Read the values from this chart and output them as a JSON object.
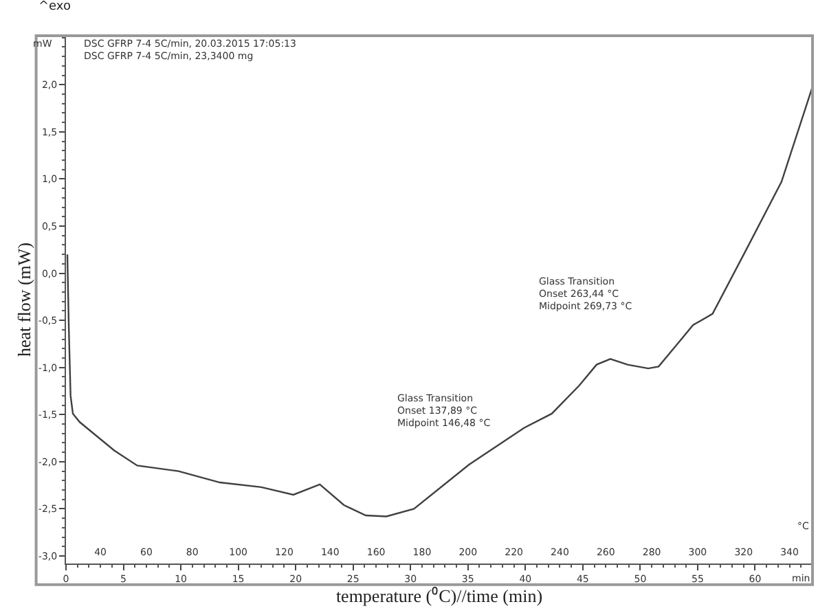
{
  "chart_data": {
    "type": "line",
    "xlabel": "temperature (⁰C)//time (min)",
    "ylabel": "heat flow (mW)",
    "annotations": [
      "^exo",
      "mW",
      "°C",
      "min",
      "DSC GFRP 7-4 5C/min, 20.03.2015 17:05:13",
      "DSC GFRP 7-4 5C/min, 23,3400 mg",
      "Glass Transition\nOnset 137,89 °C\nMidpoint 146,48 °C",
      "Glass Transition\nOnset 263,44 °C\nMidpoint 269,73 °C"
    ],
    "x": [
      0.12,
      0.25,
      0.4,
      0.6,
      1.2,
      4.2,
      6.2,
      9.8,
      13.4,
      17.0,
      19.8,
      22.1,
      24.2,
      26.1,
      27.9,
      30.3,
      35.1,
      39.9,
      42.3,
      44.7,
      46.2,
      47.4,
      48.9,
      50.7,
      51.6,
      53.1,
      54.6,
      56.3,
      59.4,
      62.3,
      65.0
    ],
    "series": [
      {
        "color": "#404040",
        "values": [
          0.2,
          -0.6,
          -1.3,
          -1.49,
          -1.58,
          -1.88,
          -2.04,
          -2.1,
          -2.22,
          -2.27,
          -2.35,
          -2.24,
          -2.46,
          -2.57,
          -2.58,
          -2.5,
          -2.03,
          -1.64,
          -1.49,
          -1.19,
          -0.97,
          -0.91,
          -0.97,
          -1.01,
          -0.99,
          -0.77,
          -0.55,
          -0.43,
          0.29,
          0.97,
          1.98
        ]
      }
    ],
    "xlim": [
      0,
      65
    ],
    "xticks": [
      0,
      5,
      10,
      15,
      20,
      25,
      30,
      35,
      40,
      45,
      50,
      55,
      60
    ],
    "x2lim": [
      25,
      350
    ],
    "x2ticks": [
      40,
      60,
      80,
      100,
      120,
      140,
      160,
      180,
      200,
      220,
      240,
      260,
      280,
      300,
      320,
      340
    ],
    "ylim": [
      -3.08,
      2.52
    ],
    "yticks": [
      {
        "value": -3.0,
        "label": "-3,0"
      },
      {
        "value": -2.5,
        "label": "-2,5"
      },
      {
        "value": -2.0,
        "label": "-2,0"
      },
      {
        "value": -1.5,
        "label": "-1,5"
      },
      {
        "value": -1.0,
        "label": "-1,0"
      },
      {
        "value": -0.5,
        "label": "-0,5"
      },
      {
        "value": 0.0,
        "label": "0,0"
      },
      {
        "value": 0.5,
        "label": "0,5"
      },
      {
        "value": 1.0,
        "label": "1,0"
      },
      {
        "value": 1.5,
        "label": "1,5"
      },
      {
        "value": 2.0,
        "label": "2,0"
      }
    ],
    "marker": "none",
    "line_style": "solid"
  }
}
